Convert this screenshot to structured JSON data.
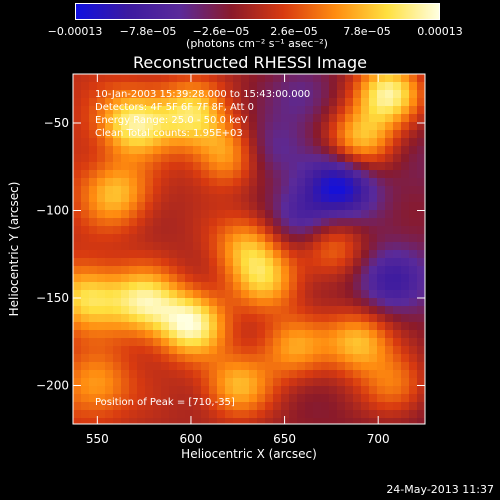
{
  "chart_data": {
    "type": "heatmap",
    "title": "Reconstructed RHESSI Image",
    "xlabel": "Heliocentric X (arcsec)",
    "ylabel": "Heliocentric Y (arcsec)",
    "xlim": [
      537,
      725
    ],
    "ylim": [
      -222,
      -22
    ],
    "x_ticks": [
      550,
      600,
      650,
      700
    ],
    "y_ticks": [
      -50,
      -100,
      -150,
      -200
    ],
    "x_tick_labels": [
      "550",
      "600",
      "650",
      "700"
    ],
    "y_tick_labels": [
      "−50",
      "−100",
      "−150",
      "−200"
    ],
    "colorbar": {
      "ticks": [
        "−0.00013",
        "−7.8e−05",
        "−2.6e−05",
        "2.6e−05",
        "7.8e−05",
        "0.00013"
      ],
      "unit": "(photons cm⁻² s⁻¹ asec⁻²)",
      "range": [
        -0.00013,
        0.00013
      ],
      "colors": [
        "#1010e0",
        "#3c1aa0",
        "#5a2a9a",
        "#8a1a2a",
        "#d83a10",
        "#ff8c10",
        "#ffe040",
        "#ffffe0"
      ]
    },
    "peak_position": [
      710,
      -35
    ],
    "hotspots": [
      {
        "x": 705,
        "y": -33,
        "v": 1.0
      },
      {
        "x": 690,
        "y": -60,
        "v": 0.7
      },
      {
        "x": 600,
        "y": -165,
        "v": 0.9
      },
      {
        "x": 575,
        "y": -152,
        "v": 0.75
      },
      {
        "x": 545,
        "y": -150,
        "v": 0.65
      },
      {
        "x": 570,
        "y": -50,
        "v": 0.8
      },
      {
        "x": 600,
        "y": -45,
        "v": 0.7
      },
      {
        "x": 620,
        "y": -68,
        "v": 0.6
      },
      {
        "x": 560,
        "y": -90,
        "v": 0.55
      },
      {
        "x": 630,
        "y": -120,
        "v": 0.55
      },
      {
        "x": 640,
        "y": -140,
        "v": 0.6
      },
      {
        "x": 690,
        "y": -175,
        "v": 0.75
      },
      {
        "x": 655,
        "y": -178,
        "v": 0.55
      },
      {
        "x": 625,
        "y": -200,
        "v": 0.6
      },
      {
        "x": 710,
        "y": -200,
        "v": 0.5
      },
      {
        "x": 675,
        "y": -120,
        "v": 0.5
      },
      {
        "x": 550,
        "y": -200,
        "v": 0.45
      },
      {
        "x": 660,
        "y": -35,
        "v": -0.3
      },
      {
        "x": 680,
        "y": -85,
        "v": -0.8
      },
      {
        "x": 660,
        "y": -105,
        "v": -0.5
      },
      {
        "x": 705,
        "y": -140,
        "v": -0.5
      },
      {
        "x": 640,
        "y": -65,
        "v": -0.4
      }
    ]
  },
  "info": {
    "time": "10-Jan-2003 15:39:28.000 to 15:43:00.000",
    "detectors": "Detectors: 4F 5F 6F 7F 8F, Att 0",
    "energy": "Energy Range: 25.0 - 50.0 keV",
    "clean": "Clean    Total counts: 1.95E+03",
    "peak": "Position of Peak = [710,-35]"
  },
  "timestamp": "24-May-2013 11:37"
}
